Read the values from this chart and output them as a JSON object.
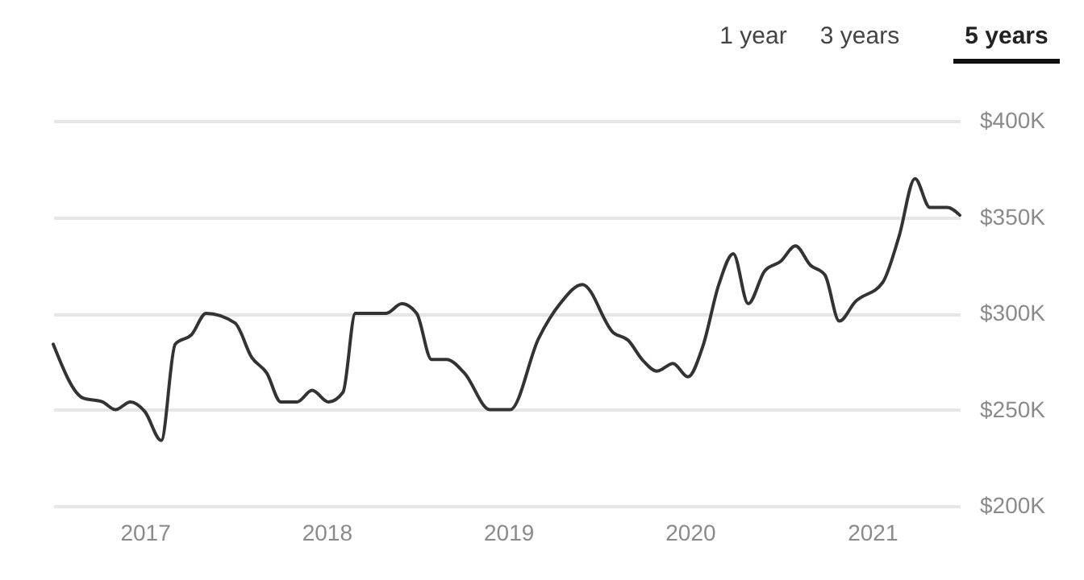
{
  "chart_data": {
    "type": "line",
    "annotations": [
      "1 year",
      "3 years",
      "5 years"
    ],
    "x": [
      "2016-07-01",
      "2016-08-30",
      "2016-10-08",
      "2016-11-03",
      "2016-12-03",
      "2017-01-01",
      "2017-02-03",
      "2017-03-03",
      "2017-04-05",
      "2017-05-04",
      "2017-07-01",
      "2017-08-04",
      "2017-09-03",
      "2017-10-01",
      "2017-11-03",
      "2017-12-03",
      "2018-01-05",
      "2018-02-03",
      "2018-02-28",
      "2018-05-01",
      "2018-06-01",
      "2018-07-01",
      "2018-07-31",
      "2018-08-30",
      "2018-10-05",
      "2018-11-25",
      "2019-01-05",
      "2019-03-03",
      "2019-04-15",
      "2019-05-30",
      "2019-07-31",
      "2019-08-30",
      "2019-09-27",
      "2019-10-27",
      "2019-11-28",
      "2019-12-28",
      "2020-01-27",
      "2020-02-28",
      "2020-03-28",
      "2020-04-27",
      "2020-05-30",
      "2020-07-01",
      "2020-07-31",
      "2020-08-30",
      "2020-09-28",
      "2020-10-27",
      "2020-11-28",
      "2021-01-22",
      "2021-02-24",
      "2021-03-28",
      "2021-04-27",
      "2021-06-01",
      "2021-06-26"
    ],
    "series": [
      {
        "color": "#333333",
        "values": [
          284000,
          256000,
          254000,
          250000,
          254000,
          249000,
          234000,
          284000,
          289000,
          300000,
          295000,
          277000,
          269000,
          254000,
          254000,
          260000,
          254000,
          259000,
          300000,
          300000,
          305000,
          300000,
          276000,
          276000,
          269000,
          250000,
          250000,
          287000,
          305000,
          315000,
          290000,
          286000,
          276000,
          270000,
          274000,
          267000,
          283000,
          315000,
          331000,
          305000,
          322000,
          327000,
          335000,
          325000,
          320000,
          296000,
          306000,
          316000,
          340000,
          370000,
          355000,
          355000,
          351000
        ]
      }
    ],
    "xlim": [
      "2016-07-01",
      "2021-06-26"
    ],
    "xticks": [
      {
        "value": "2017",
        "label": "2017"
      },
      {
        "value": "2018",
        "label": "2018"
      },
      {
        "value": "2019",
        "label": "2019"
      },
      {
        "value": "2020",
        "label": "2020"
      },
      {
        "value": "2021",
        "label": "2021"
      }
    ],
    "ylim": [
      200000,
      400000
    ],
    "yticks": [
      {
        "value": 200000,
        "label": "$200K"
      },
      {
        "value": 250000,
        "label": "$250K"
      },
      {
        "value": 300000,
        "label": "$300K"
      },
      {
        "value": 350000,
        "label": "$350K"
      },
      {
        "value": 400000,
        "label": "$400K"
      }
    ],
    "grid": "y",
    "legend": false,
    "line_style": "solid",
    "marker": "none"
  }
}
